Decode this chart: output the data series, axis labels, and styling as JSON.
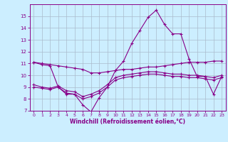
{
  "x": [
    0,
    1,
    2,
    3,
    4,
    5,
    6,
    7,
    8,
    9,
    10,
    11,
    12,
    13,
    14,
    15,
    16,
    17,
    18,
    19,
    20,
    21,
    22,
    23
  ],
  "line1": [
    11.1,
    10.9,
    10.8,
    9.0,
    8.4,
    8.4,
    7.5,
    6.9,
    8.1,
    9.0,
    10.4,
    11.2,
    12.7,
    13.8,
    14.9,
    15.5,
    14.3,
    13.5,
    13.5,
    11.4,
    9.9,
    9.9,
    8.4,
    9.9
  ],
  "line2": [
    11.1,
    11.0,
    10.9,
    10.8,
    10.7,
    10.6,
    10.5,
    10.2,
    10.2,
    10.3,
    10.4,
    10.5,
    10.5,
    10.6,
    10.7,
    10.7,
    10.8,
    10.9,
    11.0,
    11.1,
    11.1,
    11.1,
    11.2,
    11.2
  ],
  "line3": [
    9.0,
    8.9,
    8.8,
    9.0,
    8.5,
    8.4,
    8.0,
    8.2,
    8.5,
    9.0,
    9.6,
    9.8,
    9.9,
    10.0,
    10.1,
    10.1,
    10.0,
    9.9,
    9.9,
    9.8,
    9.8,
    9.7,
    9.6,
    9.8
  ],
  "line4": [
    9.2,
    9.0,
    8.9,
    9.1,
    8.7,
    8.6,
    8.2,
    8.4,
    8.7,
    9.2,
    9.8,
    10.0,
    10.1,
    10.2,
    10.3,
    10.3,
    10.2,
    10.1,
    10.1,
    10.0,
    10.0,
    9.9,
    9.8,
    10.0
  ],
  "bg_color": "#cceeff",
  "grid_color": "#aabbcc",
  "line_color": "#880088",
  "xlabel": "Windchill (Refroidissement éolien,°C)",
  "ylim": [
    7,
    16
  ],
  "xlim": [
    0,
    23
  ],
  "yticks": [
    7,
    8,
    9,
    10,
    11,
    12,
    13,
    14,
    15
  ],
  "xticks": [
    0,
    1,
    2,
    3,
    4,
    5,
    6,
    7,
    8,
    9,
    10,
    11,
    12,
    13,
    14,
    15,
    16,
    17,
    18,
    19,
    20,
    21,
    22,
    23
  ]
}
